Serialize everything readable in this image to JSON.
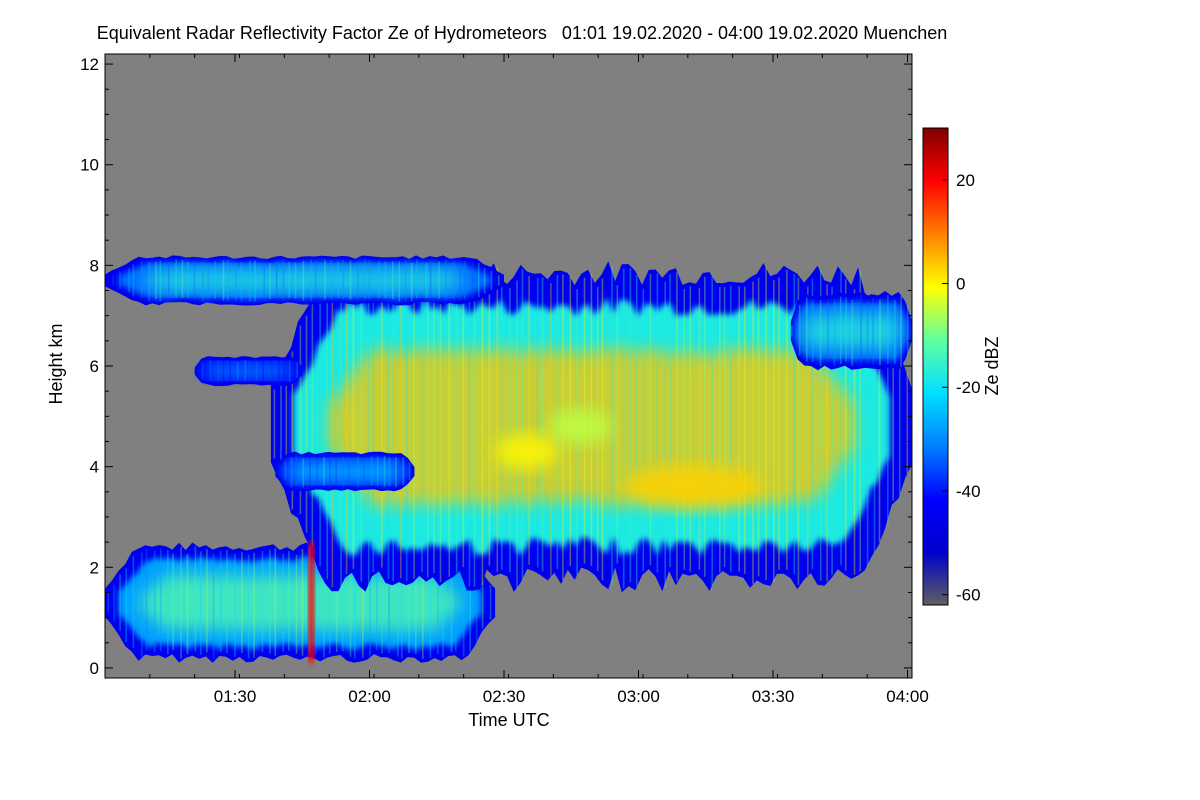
{
  "chart_data": {
    "type": "heatmap",
    "title": "Equivalent Radar Reflectivity Factor Ze of Hydrometeors   01:01 19.02.2020 - 04:00 19.02.2020 Muenchen",
    "xlabel": "Time UTC",
    "ylabel": "Height km",
    "xlim": [
      "01:01",
      "04:01"
    ],
    "ylim": [
      -0.2,
      12.2
    ],
    "x_ticks": [
      "01:30",
      "02:00",
      "02:30",
      "03:00",
      "03:30",
      "04:00"
    ],
    "y_ticks": [
      0,
      2,
      4,
      6,
      8,
      10,
      12
    ],
    "background_color": "#808080",
    "colorbar": {
      "label": "Ze dBZ",
      "range": [
        -62,
        30
      ],
      "ticks": [
        20,
        0,
        -20,
        -40,
        -60
      ],
      "colormap": [
        "#606060",
        "#0000cc",
        "#0000ff",
        "#0080ff",
        "#00e0ff",
        "#60ffa0",
        "#ffff00",
        "#ff8000",
        "#ff0000",
        "#800000"
      ]
    },
    "regions": [
      {
        "name": "lower-cloud",
        "t_start": "01:01",
        "t_end": "02:28",
        "h_bottom": 0.1,
        "h_top": 2.5,
        "ze_typical": -20
      },
      {
        "name": "main-cloud",
        "t_start": "01:38",
        "t_end": "04:01",
        "h_bottom": 1.5,
        "h_top": 8.1,
        "ze_typical": -10
      },
      {
        "name": "upper-thin-layer",
        "t_start": "01:01",
        "t_end": "02:30",
        "h_bottom": 7.2,
        "h_top": 8.2,
        "ze_typical": -25
      },
      {
        "name": "mid-layer-6km",
        "t_start": "01:21",
        "t_end": "01:45",
        "h_bottom": 5.6,
        "h_top": 6.2,
        "ze_typical": -35
      },
      {
        "name": "mid-layer-4km",
        "t_start": "01:39",
        "t_end": "02:10",
        "h_bottom": 3.5,
        "h_top": 4.3,
        "ze_typical": -30
      },
      {
        "name": "upper-right-cell",
        "t_start": "03:34",
        "t_end": "04:01",
        "h_bottom": 5.9,
        "h_top": 7.5,
        "ze_typical": -25
      }
    ],
    "cores": [
      {
        "t": "01:47",
        "h": 1.2,
        "ze": 20
      },
      {
        "t": "02:35",
        "h": 4.3,
        "ze": 0
      },
      {
        "t": "03:12",
        "h": 3.6,
        "ze": 3
      },
      {
        "t": "02:47",
        "h": 4.8,
        "ze": -5
      }
    ]
  }
}
